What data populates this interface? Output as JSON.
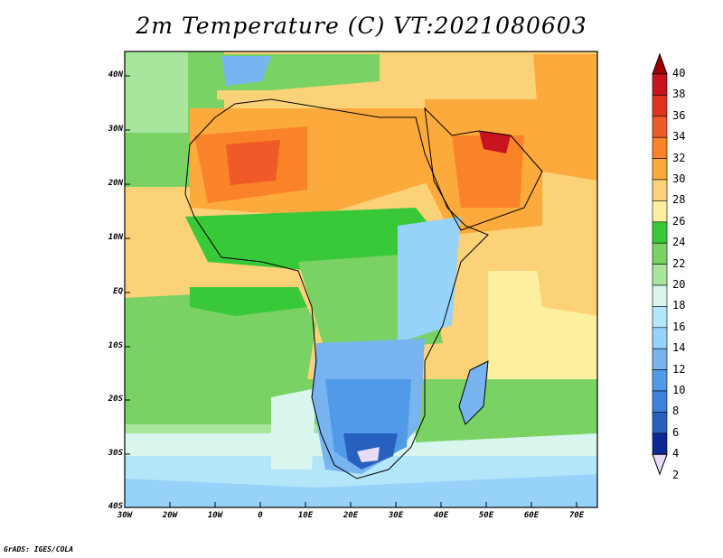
{
  "title": "2m Temperature (C) VT:2021080603",
  "footer": "GrADS: IGES/COLA",
  "map": {
    "lon_labels": [
      "30W",
      "20W",
      "10W",
      "0",
      "10E",
      "20E",
      "30E",
      "40E",
      "50E",
      "60E",
      "70E"
    ],
    "lat_labels": [
      "40N",
      "30N",
      "20N",
      "10N",
      "EQ",
      "10S",
      "20S",
      "30S",
      "40S"
    ]
  },
  "colorbar": {
    "labels": [
      "40",
      "38",
      "36",
      "34",
      "32",
      "30",
      "28",
      "26",
      "24",
      "22",
      "20",
      "18",
      "16",
      "14",
      "12",
      "10",
      "8",
      "6",
      "4",
      "2"
    ],
    "colors": [
      "#a00000",
      "#c8141e",
      "#e0321e",
      "#f05a28",
      "#fa8228",
      "#fcaa3c",
      "#fcd278",
      "#fcf0a0",
      "#38c838",
      "#7ad264",
      "#a8e69e",
      "#d8f6ee",
      "#b4e6fa",
      "#96d2fa",
      "#78b4f0",
      "#509ae8",
      "#3c82dc",
      "#2860c0",
      "#0c2894",
      "#e6dcfa"
    ]
  }
}
